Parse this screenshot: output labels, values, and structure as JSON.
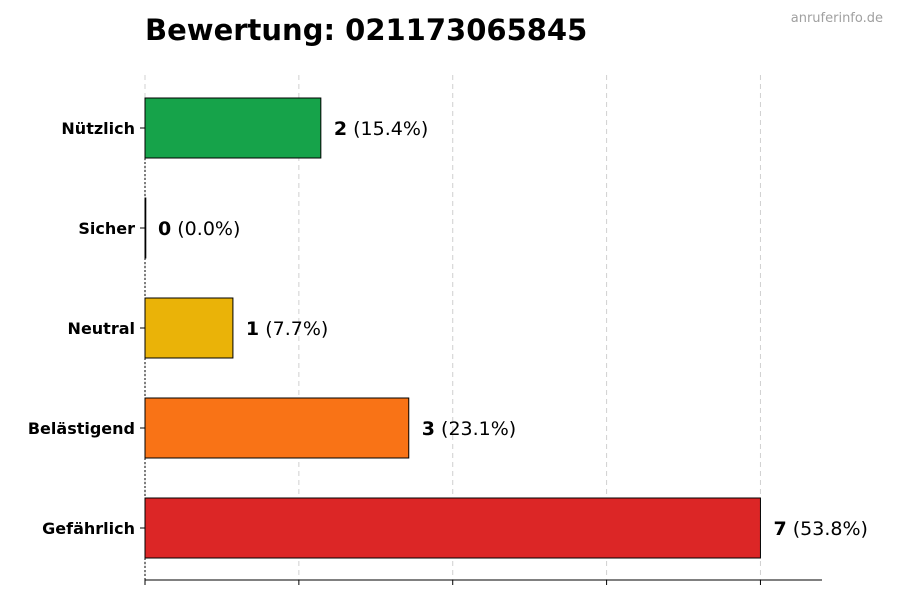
{
  "chart_data": {
    "type": "bar",
    "orientation": "horizontal",
    "title": "Bewertung: 021173065845",
    "watermark": "anruferinfo.de",
    "categories": [
      "Nützlich",
      "Sicher",
      "Neutral",
      "Belästigend",
      "Gefährlich"
    ],
    "values": [
      2,
      0,
      1,
      3,
      7
    ],
    "percent_labels": [
      "(15.4%)",
      "(0.0%)",
      "(7.7%)",
      "(23.1%)",
      "(53.8%)"
    ],
    "colors": [
      "#16a34a",
      "#16a34a",
      "#eab308",
      "#f97316",
      "#dc2626"
    ],
    "xlim": [
      0,
      7.7
    ],
    "x_gridlines": [
      0,
      1.75,
      3.5,
      5.25,
      7
    ],
    "grid": true
  }
}
